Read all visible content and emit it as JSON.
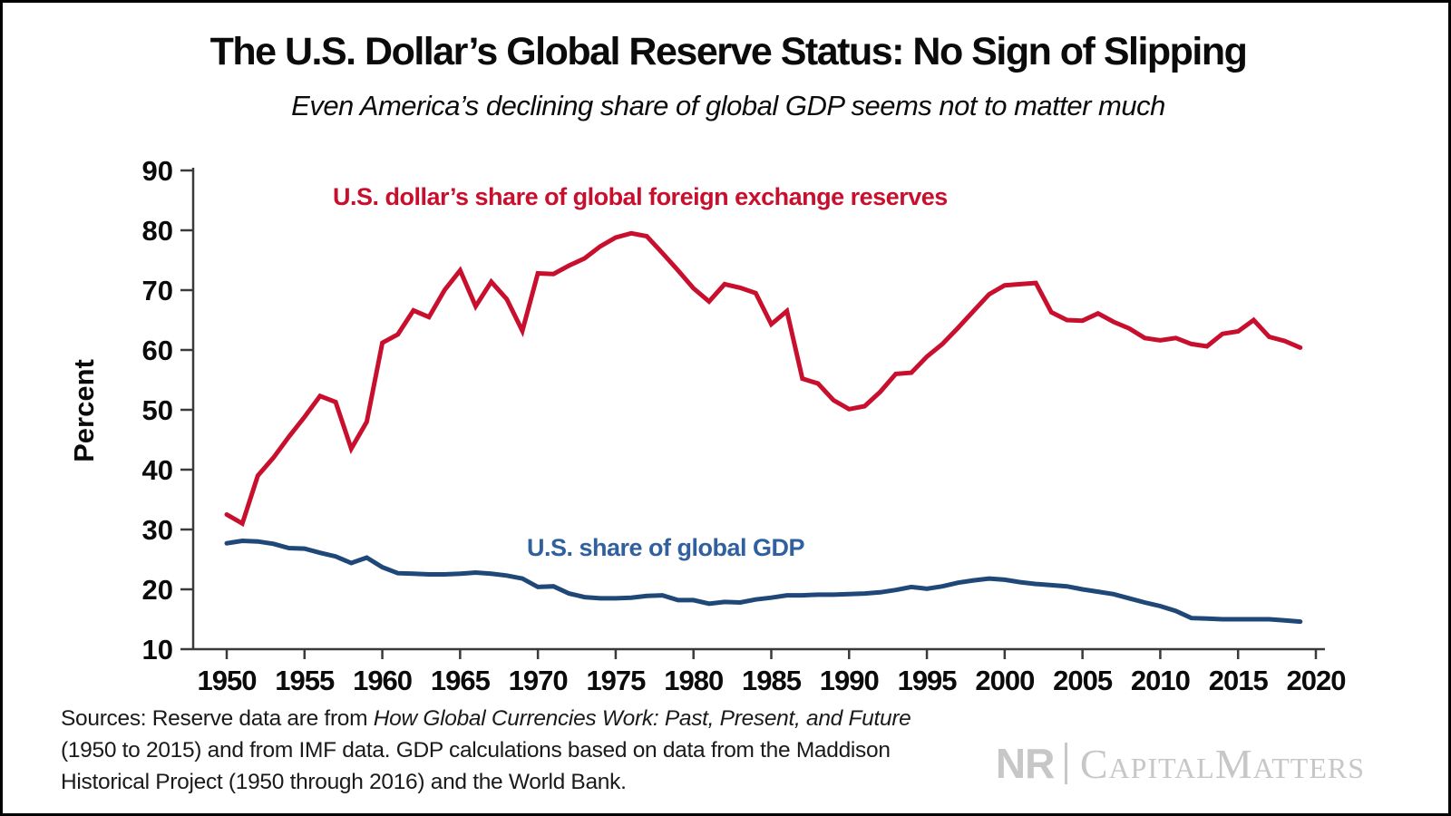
{
  "header": {
    "title": "The U.S. Dollar’s Global Reserve Status: No Sign of Slipping",
    "subtitle": "Even America’s declining share of global GDP seems not to matter much"
  },
  "chart_data": {
    "type": "line",
    "title": "The U.S. Dollar’s Global Reserve Status: No Sign of Slipping",
    "xlabel": "",
    "ylabel": "Percent",
    "xlim": [
      1950,
      2020
    ],
    "ylim": [
      10,
      90
    ],
    "x_ticks": [
      1950,
      1955,
      1960,
      1965,
      1970,
      1975,
      1980,
      1985,
      1990,
      1995,
      2000,
      2005,
      2010,
      2015,
      2020
    ],
    "y_ticks": [
      10,
      20,
      30,
      40,
      50,
      60,
      70,
      80,
      90
    ],
    "grid": false,
    "legend_position": "inline-labels",
    "x": [
      1950,
      1951,
      1952,
      1953,
      1954,
      1955,
      1956,
      1957,
      1958,
      1959,
      1960,
      1961,
      1962,
      1963,
      1964,
      1965,
      1966,
      1967,
      1968,
      1969,
      1970,
      1971,
      1972,
      1973,
      1974,
      1975,
      1976,
      1977,
      1978,
      1979,
      1980,
      1981,
      1982,
      1983,
      1984,
      1985,
      1986,
      1987,
      1988,
      1989,
      1990,
      1991,
      1992,
      1993,
      1994,
      1995,
      1996,
      1997,
      1998,
      1999,
      2000,
      2001,
      2002,
      2003,
      2004,
      2005,
      2006,
      2007,
      2008,
      2009,
      2010,
      2011,
      2012,
      2013,
      2014,
      2015,
      2016,
      2017,
      2018,
      2019
    ],
    "series": [
      {
        "name": "U.S. dollar’s share of global foreign exchange reserves",
        "color": "#c8102e",
        "values": [
          32.5,
          31.0,
          39.0,
          42.0,
          45.5,
          48.8,
          52.3,
          51.3,
          43.5,
          48.0,
          61.2,
          62.6,
          66.6,
          65.5,
          70.0,
          73.3,
          67.3,
          71.4,
          68.5,
          63.2,
          72.8,
          72.7,
          74.1,
          75.3,
          77.3,
          78.8,
          79.5,
          79.0,
          76.2,
          73.3,
          70.3,
          68.1,
          71.0,
          70.4,
          69.5,
          64.3,
          66.5,
          55.2,
          54.4,
          51.6,
          50.1,
          50.6,
          53.0,
          56.0,
          56.2,
          58.9,
          61.0,
          63.7,
          66.5,
          69.3,
          70.8,
          71.0,
          71.2,
          66.3,
          65.0,
          64.9,
          66.1,
          64.7,
          63.6,
          62.0,
          61.6,
          62.0,
          61.0,
          60.6,
          62.7,
          63.1,
          65.0,
          62.2,
          61.5,
          60.4
        ]
      },
      {
        "name": "U.S. share of global GDP",
        "color": "#1f4879",
        "values": [
          27.7,
          28.1,
          28.0,
          27.6,
          26.9,
          26.8,
          26.1,
          25.5,
          24.4,
          25.3,
          23.7,
          22.7,
          22.6,
          22.5,
          22.5,
          22.6,
          22.8,
          22.6,
          22.3,
          21.8,
          20.4,
          20.5,
          19.3,
          18.7,
          18.5,
          18.5,
          18.6,
          18.9,
          19.0,
          18.2,
          18.2,
          17.6,
          17.9,
          17.8,
          18.3,
          18.6,
          19.0,
          19.0,
          19.1,
          19.1,
          19.2,
          19.3,
          19.5,
          19.9,
          20.4,
          20.1,
          20.5,
          21.1,
          21.5,
          21.8,
          21.6,
          21.2,
          20.9,
          20.7,
          20.5,
          20.0,
          19.6,
          19.2,
          18.5,
          17.8,
          17.2,
          16.4,
          15.2,
          15.1,
          15.0,
          15.0,
          15.0,
          15.0,
          14.8,
          14.6
        ]
      }
    ]
  },
  "annotations": {
    "reserves_label": "U.S. dollar’s share of global foreign exchange reserves",
    "reserves_label_color": "#c8102e",
    "gdp_label": "U.S. share of global GDP",
    "gdp_label_color": "#30609f"
  },
  "footer": {
    "sources_line1_prefix": "Sources: Reserve data are from ",
    "sources_line1_italic": "How Global Currencies Work: Past, Present, and Future",
    "sources_line2": "(1950 to 2015) and from IMF data. GDP calculations based on data from the Maddison",
    "sources_line3": "Historical Project (1950 through 2016) and the World Bank.",
    "logo": {
      "nr": "NR",
      "capital_initial": "C",
      "capital_rest": "APITAL",
      "matters_initial": "M",
      "matters_rest": "ATTERS"
    }
  }
}
